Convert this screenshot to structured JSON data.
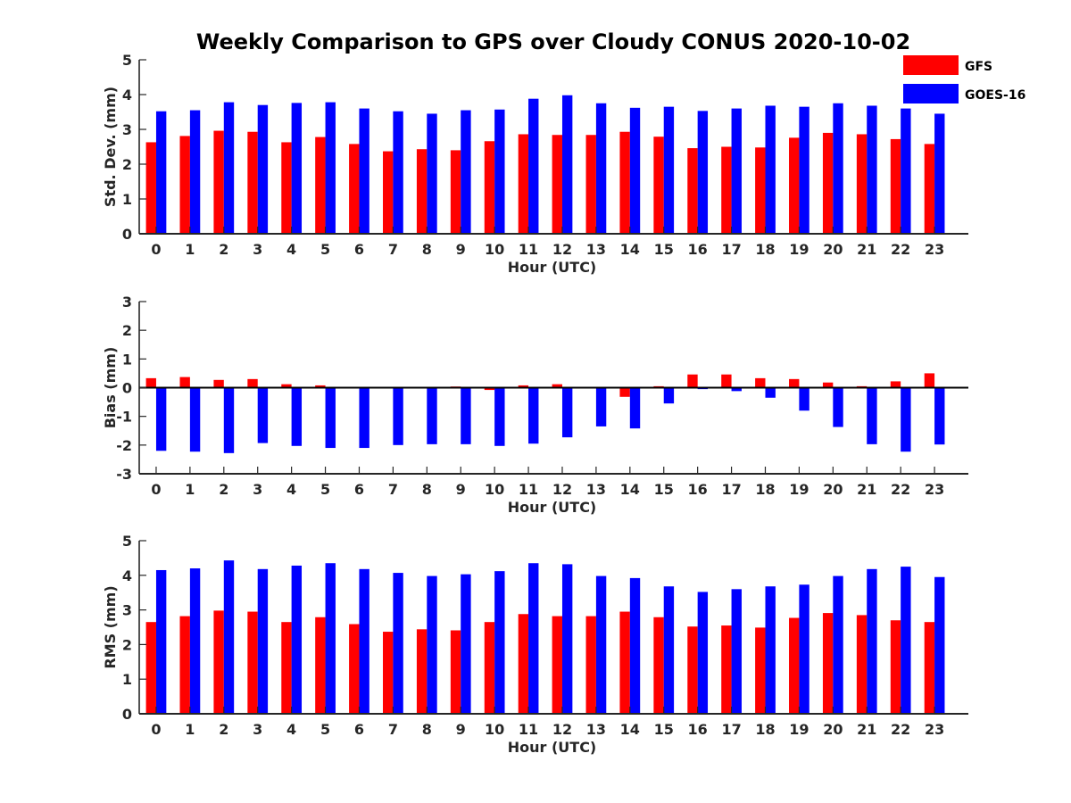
{
  "title": "Weekly Comparison to GPS over Cloudy CONUS 2020-10-02",
  "legend": [
    {
      "name": "GFS",
      "color": "#ff0000"
    },
    {
      "name": "GOES-16",
      "color": "#0000ff"
    }
  ],
  "chart_data": [
    {
      "type": "bar",
      "xlabel": "Hour (UTC)",
      "ylabel": "Std. Dev. (mm)",
      "ylim": [
        0,
        5
      ],
      "yticks": [
        "0",
        "1",
        "2",
        "3",
        "4",
        "5"
      ],
      "categories": [
        "0",
        "1",
        "2",
        "3",
        "4",
        "5",
        "6",
        "7",
        "8",
        "9",
        "10",
        "11",
        "12",
        "13",
        "14",
        "15",
        "16",
        "17",
        "18",
        "19",
        "20",
        "21",
        "22",
        "23"
      ],
      "legend_position": "top-right",
      "series": [
        {
          "name": "GFS",
          "color": "#ff0000",
          "values": [
            2.63,
            2.81,
            2.96,
            2.93,
            2.63,
            2.78,
            2.58,
            2.37,
            2.43,
            2.4,
            2.66,
            2.86,
            2.84,
            2.84,
            2.93,
            2.79,
            2.46,
            2.5,
            2.48,
            2.76,
            2.9,
            2.86,
            2.72,
            2.58
          ]
        },
        {
          "name": "GOES-16",
          "color": "#0000ff",
          "values": [
            3.52,
            3.55,
            3.78,
            3.7,
            3.76,
            3.78,
            3.6,
            3.52,
            3.45,
            3.55,
            3.57,
            3.88,
            3.98,
            3.75,
            3.62,
            3.65,
            3.53,
            3.6,
            3.68,
            3.65,
            3.75,
            3.68,
            3.6,
            3.45
          ]
        }
      ]
    },
    {
      "type": "bar",
      "xlabel": "Hour (UTC)",
      "ylabel": "Bias (mm)",
      "ylim": [
        -3,
        3
      ],
      "yticks": [
        "-3",
        "-2",
        "-1",
        "0",
        "1",
        "2",
        "3"
      ],
      "categories": [
        "0",
        "1",
        "2",
        "3",
        "4",
        "5",
        "6",
        "7",
        "8",
        "9",
        "10",
        "11",
        "12",
        "13",
        "14",
        "15",
        "16",
        "17",
        "18",
        "19",
        "20",
        "21",
        "22",
        "23"
      ],
      "series": [
        {
          "name": "GFS",
          "color": "#ff0000",
          "values": [
            0.33,
            0.37,
            0.27,
            0.3,
            0.12,
            0.08,
            0.02,
            0.0,
            0.0,
            0.04,
            -0.08,
            0.08,
            0.12,
            0.0,
            -0.32,
            0.05,
            0.46,
            0.46,
            0.33,
            0.3,
            0.18,
            0.05,
            0.22,
            0.5
          ]
        },
        {
          "name": "GOES-16",
          "color": "#0000ff",
          "values": [
            -2.2,
            -2.23,
            -2.28,
            -1.93,
            -2.03,
            -2.1,
            -2.1,
            -2.0,
            -1.97,
            -1.97,
            -2.03,
            -1.95,
            -1.73,
            -1.35,
            -1.42,
            -0.55,
            -0.05,
            -0.12,
            -0.35,
            -0.8,
            -1.37,
            -1.97,
            -2.23,
            -1.98
          ]
        }
      ]
    },
    {
      "type": "bar",
      "xlabel": "Hour (UTC)",
      "ylabel": "RMS (mm)",
      "ylim": [
        0,
        5
      ],
      "yticks": [
        "0",
        "1",
        "2",
        "3",
        "4",
        "5"
      ],
      "categories": [
        "0",
        "1",
        "2",
        "3",
        "4",
        "5",
        "6",
        "7",
        "8",
        "9",
        "10",
        "11",
        "12",
        "13",
        "14",
        "15",
        "16",
        "17",
        "18",
        "19",
        "20",
        "21",
        "22",
        "23"
      ],
      "series": [
        {
          "name": "GFS",
          "color": "#ff0000",
          "values": [
            2.65,
            2.82,
            2.98,
            2.95,
            2.65,
            2.79,
            2.59,
            2.37,
            2.44,
            2.41,
            2.65,
            2.88,
            2.82,
            2.82,
            2.95,
            2.79,
            2.52,
            2.55,
            2.49,
            2.77,
            2.91,
            2.85,
            2.7,
            2.65
          ]
        },
        {
          "name": "GOES-16",
          "color": "#0000ff",
          "values": [
            4.15,
            4.2,
            4.43,
            4.18,
            4.28,
            4.35,
            4.18,
            4.07,
            3.98,
            4.03,
            4.12,
            4.35,
            4.32,
            3.98,
            3.92,
            3.68,
            3.52,
            3.6,
            3.68,
            3.73,
            3.98,
            4.18,
            4.25,
            3.95
          ]
        }
      ]
    }
  ]
}
